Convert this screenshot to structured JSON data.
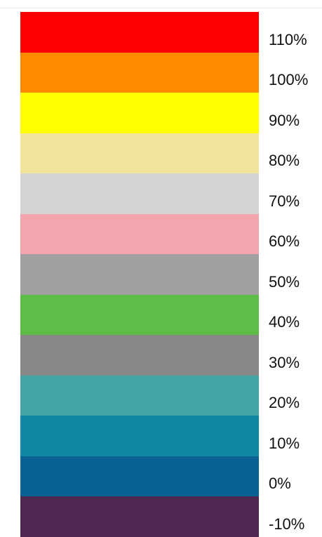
{
  "chart_data": {
    "type": "heatmap",
    "title": "",
    "categories": [
      "110%",
      "100%",
      "90%",
      "80%",
      "70%",
      "60%",
      "50%",
      "40%",
      "30%",
      "20%",
      "10%",
      "0%",
      "-10%"
    ],
    "values": [
      110,
      100,
      90,
      80,
      70,
      60,
      50,
      40,
      30,
      20,
      10,
      0,
      -10
    ],
    "colors": [
      "#ff0000",
      "#ff8a00",
      "#ffff00",
      "#f0e39a",
      "#d4d4d4",
      "#f4a4ad",
      "#a0a0a0",
      "#5dbd46",
      "#878787",
      "#44a4a8",
      "#1286a5",
      "#0a6294",
      "#4f2852"
    ],
    "legend": "right",
    "grid": false
  }
}
